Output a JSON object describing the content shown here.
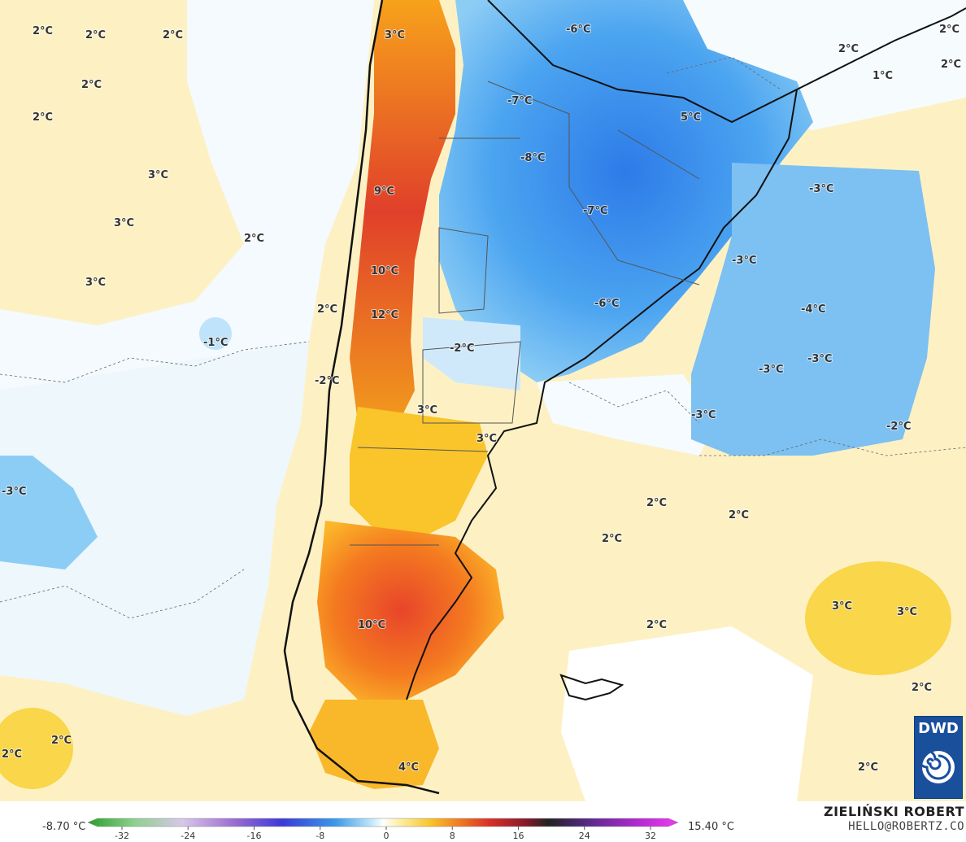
{
  "map": {
    "labels": [
      {
        "text": "2°C"
      },
      {
        "text": "2°C"
      },
      {
        "text": "2°C"
      },
      {
        "text": "3°C"
      },
      {
        "text": "2°C"
      },
      {
        "text": "2°C"
      },
      {
        "text": "3°C"
      },
      {
        "text": "3°C"
      },
      {
        "text": "2°C"
      },
      {
        "text": "3°C"
      },
      {
        "text": "9°C"
      },
      {
        "text": "10°C"
      },
      {
        "text": "2°C"
      },
      {
        "text": "12°C"
      },
      {
        "text": "-1°C"
      },
      {
        "text": "-2°C"
      },
      {
        "text": "-2°C"
      },
      {
        "text": "3°C"
      },
      {
        "text": "3°C"
      },
      {
        "text": "-3°C"
      },
      {
        "text": "-6°C"
      },
      {
        "text": "-7°C"
      },
      {
        "text": "-8°C"
      },
      {
        "text": "-7°C"
      },
      {
        "text": "-6°C"
      },
      {
        "text": "5°C"
      },
      {
        "text": "2°C"
      },
      {
        "text": "1°C"
      },
      {
        "text": "2°C"
      },
      {
        "text": "2°C"
      },
      {
        "text": "-3°C"
      },
      {
        "text": "-3°C"
      },
      {
        "text": "-4°C"
      },
      {
        "text": "-3°C"
      },
      {
        "text": "-3°C"
      },
      {
        "text": "-3°C"
      },
      {
        "text": "-2°C"
      },
      {
        "text": "2°C"
      },
      {
        "text": "2°C"
      },
      {
        "text": "2°C"
      },
      {
        "text": "10°C"
      },
      {
        "text": "2°C"
      },
      {
        "text": "3°C"
      },
      {
        "text": "3°C"
      },
      {
        "text": "2°C"
      },
      {
        "text": "2°C"
      },
      {
        "text": "2°C"
      },
      {
        "text": "2°C"
      },
      {
        "text": "4°C"
      }
    ]
  },
  "legend": {
    "min_label": "-8.70 °C",
    "max_label": "15.40 °C",
    "ticks": [
      "-32",
      "-24",
      "-16",
      "-8",
      "0",
      "8",
      "16",
      "24",
      "32"
    ]
  },
  "credit": {
    "name": "ZIELIŃSKI ROBERT",
    "email": "HELLO@ROBERTZ.CO"
  },
  "logo": {
    "text": "DWD"
  }
}
